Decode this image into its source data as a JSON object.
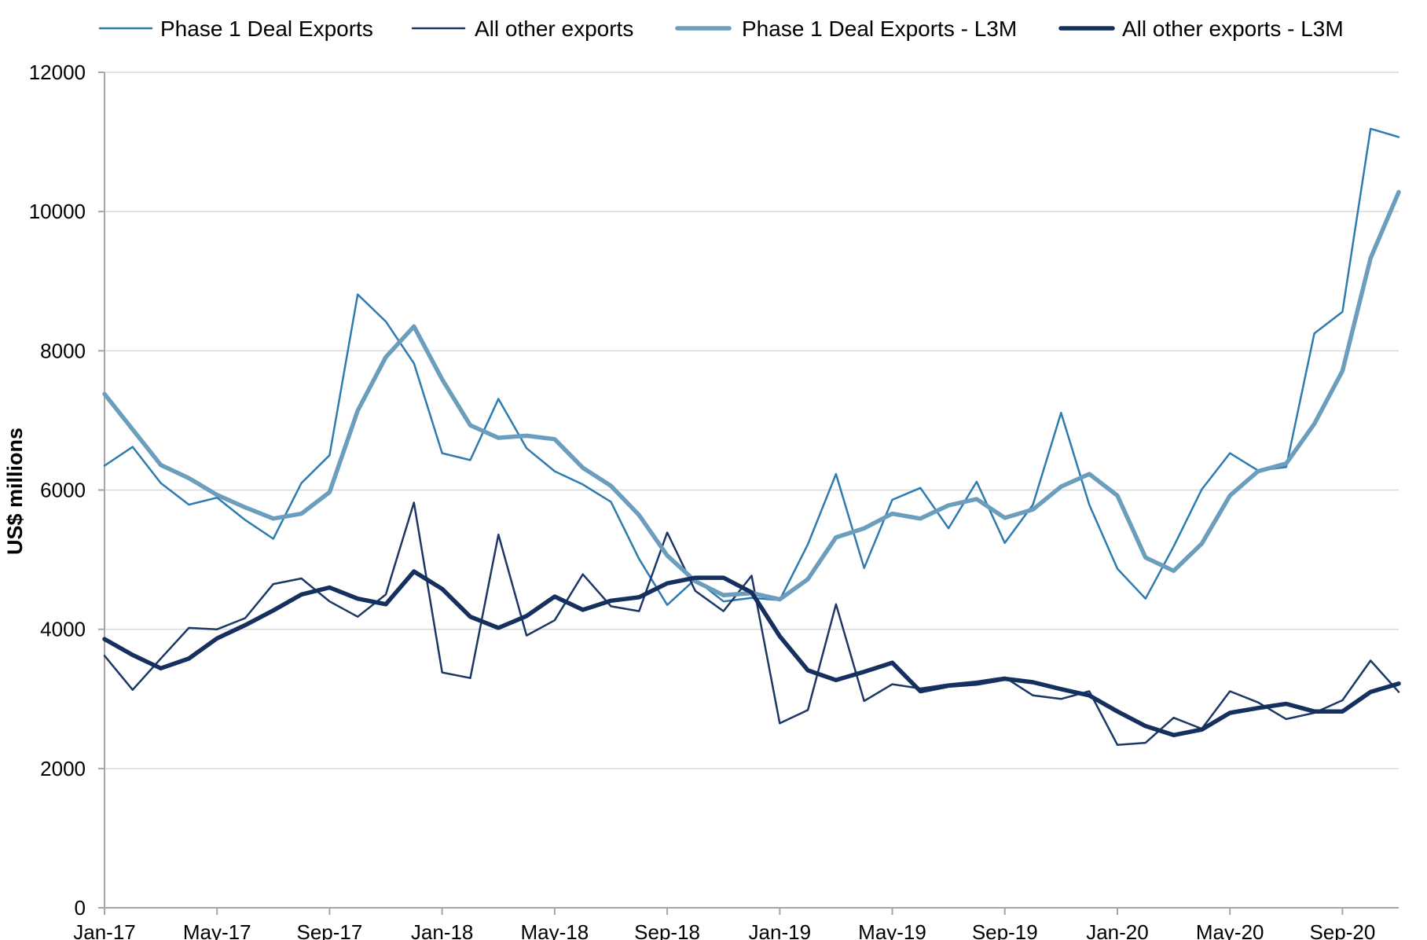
{
  "chart_data": {
    "type": "line",
    "title": "",
    "xlabel": "",
    "ylabel": "US$ millions",
    "ylim": [
      0,
      12000
    ],
    "yticks": [
      0,
      2000,
      4000,
      6000,
      8000,
      10000,
      12000
    ],
    "grid": true,
    "legend_position": "top",
    "x_tick_labels": [
      "Jan-17",
      "May-17",
      "Sep-17",
      "Jan-18",
      "May-18",
      "Sep-18",
      "Jan-19",
      "May-19",
      "Sep-19",
      "Jan-20",
      "May-20",
      "Sep-20"
    ],
    "x_tick_every": 4,
    "x": [
      "Jan-17",
      "Feb-17",
      "Mar-17",
      "Apr-17",
      "May-17",
      "Jun-17",
      "Jul-17",
      "Aug-17",
      "Sep-17",
      "Oct-17",
      "Nov-17",
      "Dec-17",
      "Jan-18",
      "Feb-18",
      "Mar-18",
      "Apr-18",
      "May-18",
      "Jun-18",
      "Jul-18",
      "Aug-18",
      "Sep-18",
      "Oct-18",
      "Nov-18",
      "Dec-18",
      "Jan-19",
      "Feb-19",
      "Mar-19",
      "Apr-19",
      "May-19",
      "Jun-19",
      "Jul-19",
      "Aug-19",
      "Sep-19",
      "Oct-19",
      "Nov-19",
      "Dec-19",
      "Jan-20",
      "Feb-20",
      "Mar-20",
      "Apr-20",
      "May-20",
      "Jun-20",
      "Jul-20",
      "Aug-20",
      "Sep-20",
      "Oct-20",
      "Nov-20"
    ],
    "series": [
      {
        "name": "Phase 1 Deal Exports",
        "color": "#2e7bb0",
        "width": 2.5,
        "values": [
          6350,
          6620,
          6100,
          5790,
          5890,
          5570,
          5300,
          6100,
          6500,
          8810,
          8420,
          7820,
          6530,
          6430,
          7310,
          6600,
          6270,
          6080,
          5830,
          5010,
          4350,
          4720,
          4400,
          4450,
          4420,
          5220,
          6230,
          4880,
          5860,
          6030,
          5450,
          6120,
          5240,
          5790,
          7110,
          5790,
          4870,
          4440,
          5190,
          6010,
          6530,
          6280,
          6330,
          8250,
          8560,
          11190,
          11070
        ]
      },
      {
        "name": "All other exports",
        "color": "#1b3766",
        "width": 2.5,
        "values": [
          3620,
          3130,
          3580,
          4020,
          4000,
          4160,
          4650,
          4730,
          4400,
          4180,
          4500,
          5820,
          3380,
          3300,
          5360,
          3910,
          4130,
          4790,
          4330,
          4260,
          5390,
          4550,
          4260,
          4770,
          2650,
          2840,
          4360,
          2970,
          3210,
          3150,
          3210,
          3250,
          3310,
          3050,
          3000,
          3110,
          2340,
          2370,
          2730,
          2570,
          3110,
          2950,
          2710,
          2800,
          2980,
          3550,
          3100
        ]
      },
      {
        "name": "Phase 1 Deal Exports - L3M",
        "color": "#6b9dbd",
        "width": 5.5,
        "values": [
          7380,
          6870,
          6360,
          6170,
          5930,
          5750,
          5590,
          5660,
          5970,
          7140,
          7910,
          8350,
          7590,
          6930,
          6750,
          6780,
          6730,
          6320,
          6060,
          5640,
          5060,
          4690,
          4490,
          4520,
          4430,
          4720,
          5320,
          5450,
          5660,
          5590,
          5780,
          5870,
          5600,
          5720,
          6050,
          6230,
          5920,
          5030,
          4840,
          5230,
          5920,
          6270,
          6380,
          6950,
          7710,
          9330,
          10280
        ]
      },
      {
        "name": "All other exports - L3M",
        "color": "#15305e",
        "width": 5.5,
        "values": [
          3860,
          3630,
          3440,
          3580,
          3870,
          4060,
          4270,
          4500,
          4600,
          4440,
          4360,
          4830,
          4580,
          4180,
          4020,
          4190,
          4470,
          4280,
          4410,
          4460,
          4660,
          4740,
          4740,
          4530,
          3900,
          3410,
          3270,
          3390,
          3520,
          3110,
          3190,
          3220,
          3290,
          3240,
          3140,
          3050,
          2820,
          2610,
          2480,
          2560,
          2800,
          2870,
          2930,
          2820,
          2820,
          3100,
          3220
        ]
      }
    ]
  }
}
